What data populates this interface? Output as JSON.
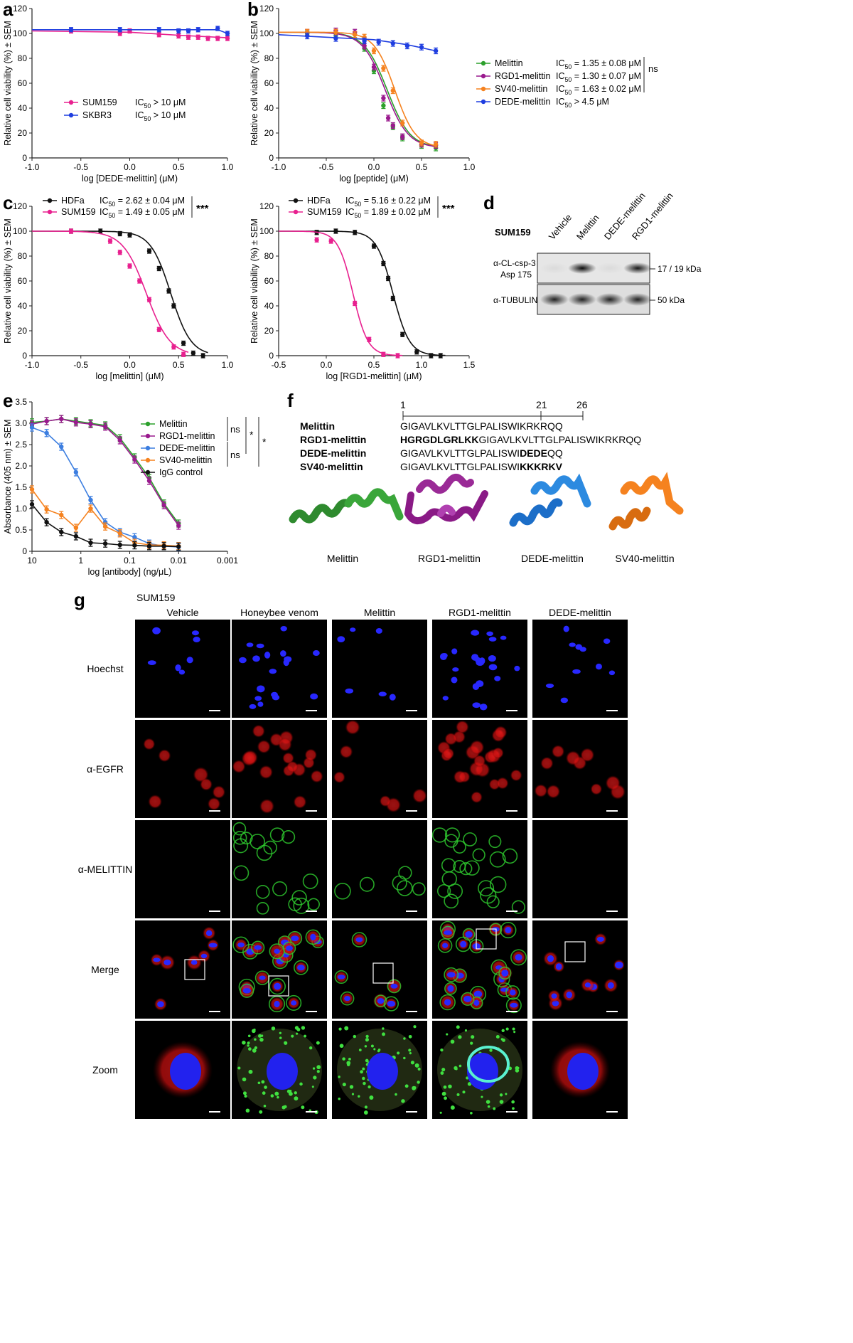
{
  "colors": {
    "green": "#2ca02c",
    "magenta": "#e8208f",
    "purple": "#9a1a8e",
    "orange": "#f5821f",
    "blue": "#1f3ee0",
    "lightblue": "#3c7ee0",
    "black": "#111111"
  },
  "panels": {
    "a": {
      "letter": "a"
    },
    "b": {
      "letter": "b"
    },
    "c": {
      "letter": "c"
    },
    "d": {
      "letter": "d"
    },
    "e": {
      "letter": "e"
    },
    "f": {
      "letter": "f"
    },
    "g": {
      "letter": "g"
    }
  },
  "chart_data": [
    {
      "id": "a",
      "type": "line",
      "xlabel": "log [DEDE-melittin] (μM)",
      "ylabel": "Relative cell viability (%) ± SEM",
      "xlim": [
        -1.0,
        1.0
      ],
      "ylim": [
        0,
        120
      ],
      "xticks": [
        "-1.0",
        "-0.5",
        "0.0",
        "0.5",
        "1.0"
      ],
      "yticks": [
        "0",
        "20",
        "40",
        "60",
        "80",
        "100",
        "120"
      ],
      "series": [
        {
          "name": "SUM159",
          "ic50": "IC50 > 10 μM",
          "color": "magenta",
          "x": [
            -0.6,
            -0.1,
            0.0,
            0.3,
            0.5,
            0.6,
            0.7,
            0.8,
            0.9,
            1.0
          ],
          "y": [
            102,
            100,
            102,
            99,
            98,
            97,
            97,
            96,
            96,
            96
          ],
          "fit": [
            [
              -1.0,
              102
            ],
            [
              0.0,
              101
            ],
            [
              0.5,
              98.5
            ],
            [
              1.0,
              96.5
            ]
          ]
        },
        {
          "name": "SKBR3",
          "ic50": "IC50 > 10 μM",
          "color": "blue",
          "x": [
            -0.6,
            -0.1,
            0.3,
            0.5,
            0.6,
            0.7,
            0.9,
            1.0
          ],
          "y": [
            103,
            103,
            103,
            102,
            102,
            103,
            104,
            100
          ],
          "fit": [
            [
              -1.0,
              103
            ],
            [
              0.5,
              103
            ],
            [
              0.9,
              103
            ],
            [
              1.0,
              100
            ]
          ]
        }
      ]
    },
    {
      "id": "b",
      "type": "line",
      "xlabel": "log [peptide] (μM)",
      "ylabel": "Relative cell viability (%) ± SEM",
      "xlim": [
        -1.0,
        1.0
      ],
      "ylim": [
        0,
        120
      ],
      "xticks": [
        "-1.0",
        "-0.5",
        "0.0",
        "0.5",
        "1.0"
      ],
      "yticks": [
        "0",
        "20",
        "40",
        "60",
        "80",
        "100",
        "120"
      ],
      "annotation": "ns",
      "series": [
        {
          "name": "Melittin",
          "ic50": "IC50 = 1.35 ± 0.08 μM",
          "color": "green",
          "x": [
            -0.7,
            -0.4,
            -0.2,
            -0.1,
            0.0,
            0.1,
            0.2,
            0.3,
            0.5,
            0.65
          ],
          "y": [
            100,
            100,
            99,
            88,
            70,
            42,
            25,
            16,
            10,
            8
          ]
        },
        {
          "name": "RGD1-melittin",
          "ic50": "IC50 = 1.30 ± 0.07 μM",
          "color": "purple",
          "x": [
            -0.7,
            -0.4,
            -0.2,
            -0.1,
            0.0,
            0.1,
            0.15,
            0.2,
            0.3,
            0.5,
            0.65
          ],
          "y": [
            101,
            102,
            101,
            90,
            73,
            48,
            32,
            26,
            17,
            11,
            10
          ]
        },
        {
          "name": "SV40-melittin",
          "ic50": "IC50 = 1.63 ± 0.02 μM",
          "color": "orange",
          "x": [
            -0.7,
            -0.4,
            -0.2,
            -0.1,
            0.0,
            0.1,
            0.2,
            0.3,
            0.5,
            0.65
          ],
          "y": [
            101,
            101,
            99,
            97,
            86,
            72,
            54,
            28,
            12,
            11
          ]
        },
        {
          "name": "DEDE-melittin",
          "ic50": "IC50 > 4.5 μM",
          "color": "blue",
          "x": [
            -0.7,
            -0.4,
            -0.1,
            0.05,
            0.2,
            0.35,
            0.5,
            0.65
          ],
          "y": [
            98,
            96,
            94,
            93,
            92,
            90,
            89,
            86
          ]
        }
      ]
    },
    {
      "id": "c1",
      "type": "line",
      "xlabel": "log [melittin] (μM)",
      "ylabel": "Relative cell viability (%) ± SEM",
      "xlim": [
        -1.0,
        1.0
      ],
      "ylim": [
        0,
        120
      ],
      "xticks": [
        "-1.0",
        "-0.5",
        "0.0",
        "0.5",
        "1.0"
      ],
      "yticks": [
        "0",
        "20",
        "40",
        "60",
        "80",
        "100",
        "120"
      ],
      "annotation": "***",
      "series": [
        {
          "name": "HDFa",
          "ic50": "IC50 = 2.62 ± 0.04 μM",
          "color": "black",
          "x": [
            -0.6,
            -0.3,
            -0.1,
            0.0,
            0.2,
            0.3,
            0.4,
            0.45,
            0.55,
            0.65,
            0.75
          ],
          "y": [
            100,
            100,
            98,
            97,
            84,
            70,
            52,
            40,
            10,
            2,
            0
          ],
          "ic50log": 0.42,
          "hill": 4.2
        },
        {
          "name": "SUM159",
          "ic50": "IC50 = 1.49 ± 0.05 μM",
          "color": "magenta",
          "x": [
            -0.6,
            -0.2,
            -0.1,
            0.0,
            0.1,
            0.2,
            0.3,
            0.45,
            0.55
          ],
          "y": [
            100,
            92,
            83,
            72,
            60,
            45,
            21,
            7,
            1
          ],
          "ic50log": 0.17,
          "hill": 3.6
        }
      ]
    },
    {
      "id": "c2",
      "type": "line",
      "xlabel": "log [RGD1-melittin] (μM)",
      "ylabel": "Relative cell viability (%) ± SEM",
      "xlim": [
        -0.5,
        1.5
      ],
      "ylim": [
        0,
        120
      ],
      "xticks": [
        "-0.5",
        "0.0",
        "0.5",
        "1.0",
        "1.5"
      ],
      "yticks": [
        "0",
        "20",
        "40",
        "60",
        "80",
        "100",
        "120"
      ],
      "annotation": "***",
      "series": [
        {
          "name": "HDFa",
          "ic50": "IC50 = 5.16 ± 0.22 μM",
          "color": "black",
          "x": [
            -0.1,
            0.1,
            0.3,
            0.5,
            0.6,
            0.65,
            0.7,
            0.8,
            0.95,
            1.1,
            1.2
          ],
          "y": [
            99,
            100,
            99,
            88,
            74,
            62,
            46,
            17,
            3,
            0,
            0
          ],
          "ic50log": 0.7,
          "hill": 5.0
        },
        {
          "name": "SUM159",
          "ic50": "IC50 = 1.89 ± 0.02 μM",
          "color": "magenta",
          "x": [
            -0.1,
            0.05,
            0.3,
            0.45,
            0.6,
            0.75
          ],
          "y": [
            93,
            92,
            42,
            13,
            1,
            0
          ],
          "ic50log": 0.28,
          "hill": 5.5
        }
      ]
    },
    {
      "id": "e",
      "type": "line",
      "xlabel": "log [antibody] (ng/μL)",
      "ylabel": "Absorbance (405 nm) ± SEM",
      "xlim": [
        1,
        -3
      ],
      "ylim": [
        0,
        3.5
      ],
      "xticks": [
        "10",
        "1",
        "0.1",
        "0.01",
        "0.001"
      ],
      "yticks": [
        "0",
        "0.5",
        "1.0",
        "1.5",
        "2.0",
        "2.5",
        "3.0",
        "3.5"
      ],
      "annotations": [
        "ns",
        "*",
        "*",
        "ns"
      ],
      "series": [
        {
          "name": "Melittin",
          "color": "green",
          "x": [
            1,
            0.7,
            0.4,
            0.1,
            -0.2,
            -0.5,
            -0.8,
            -1.1,
            -1.4,
            -1.7,
            -2.0
          ],
          "y": [
            3.02,
            3.05,
            3.1,
            3.05,
            3.0,
            2.95,
            2.65,
            2.2,
            1.72,
            1.12,
            0.65
          ]
        },
        {
          "name": "RGD1-melittin",
          "color": "purple",
          "x": [
            1,
            0.7,
            0.4,
            0.1,
            -0.2,
            -0.5,
            -0.8,
            -1.1,
            -1.4,
            -1.7,
            -2.0
          ],
          "y": [
            2.98,
            3.05,
            3.1,
            3.02,
            2.98,
            2.92,
            2.6,
            2.15,
            1.65,
            1.08,
            0.6
          ]
        },
        {
          "name": "DEDE-melittin",
          "color": "lightblue",
          "x": [
            1,
            0.7,
            0.4,
            0.1,
            -0.2,
            -0.5,
            -0.8,
            -1.1,
            -1.4,
            -1.7,
            -2.0
          ],
          "y": [
            2.9,
            2.77,
            2.45,
            1.85,
            1.2,
            0.68,
            0.45,
            0.33,
            0.18,
            0.12,
            0.1
          ]
        },
        {
          "name": "SV40-melittin",
          "color": "orange",
          "x": [
            1,
            0.7,
            0.4,
            0.1,
            -0.2,
            -0.5,
            -0.8,
            -1.1,
            -1.4,
            -1.7,
            -2.0
          ],
          "y": [
            1.45,
            0.98,
            0.85,
            0.55,
            1.0,
            0.58,
            0.42,
            0.2,
            0.15,
            0.14,
            0.12
          ]
        },
        {
          "name": "IgG control",
          "color": "black",
          "x": [
            1,
            0.7,
            0.4,
            0.1,
            -0.2,
            -0.5,
            -0.8,
            -1.1,
            -1.4,
            -1.7,
            -2.0
          ],
          "y": [
            1.1,
            0.68,
            0.45,
            0.35,
            0.2,
            0.18,
            0.15,
            0.14,
            0.12,
            0.12,
            0.11
          ]
        }
      ]
    }
  ],
  "legend_a": [
    {
      "name": "SUM159",
      "ic50_pre": "IC",
      "ic50_sub": "50",
      "ic50_post": " > 10 μM"
    },
    {
      "name": "SKBR3",
      "ic50_pre": "IC",
      "ic50_sub": "50",
      "ic50_post": " > 10 μM"
    }
  ],
  "legend_b": [
    {
      "name": "Melittin",
      "ic50_post": " = 1.35 ± 0.08 μM"
    },
    {
      "name": "RGD1-melittin",
      "ic50_post": " = 1.30 ± 0.07 μM"
    },
    {
      "name": "SV40-melittin",
      "ic50_post": " = 1.63 ± 0.02 μM"
    },
    {
      "name": "DEDE-melittin",
      "ic50_post": " > 4.5 μM"
    }
  ],
  "legend_c1": [
    {
      "name": "HDFa",
      "ic50_post": " = 2.62 ± 0.04 μM"
    },
    {
      "name": "SUM159",
      "ic50_post": " = 1.49 ± 0.05 μM"
    }
  ],
  "legend_c2": [
    {
      "name": "HDFa",
      "ic50_post": " = 5.16 ± 0.22 μM"
    },
    {
      "name": "SUM159",
      "ic50_post": " = 1.89 ± 0.02 μM"
    }
  ],
  "ic": "IC",
  "ic_sub": "50",
  "panel_d": {
    "cell_line": "SUM159",
    "lanes": [
      "Vehicle",
      "Melittin",
      "DEDE-melittin",
      "RGD1-melittin"
    ],
    "row1_label_1": "α-CL-csp-3",
    "row1_label_2": "Asp 175",
    "row1_size": "17 / 19 kDa",
    "row2_label": "α-TUBULIN",
    "row2_size": "50 kDa",
    "band_intensity_row1": [
      0.05,
      0.95,
      0.05,
      0.9
    ],
    "band_intensity_row2": [
      0.85,
      0.85,
      0.85,
      0.85
    ]
  },
  "panel_f": {
    "ruler_ticks": [
      "1",
      "21",
      "26"
    ],
    "rows": [
      {
        "name": "Melittin",
        "bold": "",
        "rest": "GIGAVLKVLTTGLPALISWIKRKRQQ",
        "prefix_plain": ""
      },
      {
        "name": "RGD1-melittin",
        "bold": "HGRGDLGRLKK",
        "rest": "GIGAVLKVLTTGLPALISWIKRKRQQ",
        "prefix_plain": ""
      },
      {
        "name": "DEDE-melittin",
        "prefix_plain": "GIGAVLKVLTTGLPALISWI",
        "bold": "DEDE",
        "rest": "QQ"
      },
      {
        "name": "SV40-melittin",
        "prefix_plain": "GIGAVLKVLTTGLPALISWI",
        "bold": "KKKRKV",
        "rest": ""
      }
    ],
    "structures": [
      "Melittin",
      "RGD1-melittin",
      "DEDE-melittin",
      "SV40-melittin"
    ]
  },
  "panel_g": {
    "cell_line": "SUM159",
    "columns": [
      "Vehicle",
      "Honeybee venom",
      "Melittin",
      "RGD1-melittin",
      "DEDE-melittin"
    ],
    "rows": [
      "Hoechst",
      "α-EGFR",
      "α-MELITTIN",
      "Merge",
      "Zoom"
    ]
  }
}
